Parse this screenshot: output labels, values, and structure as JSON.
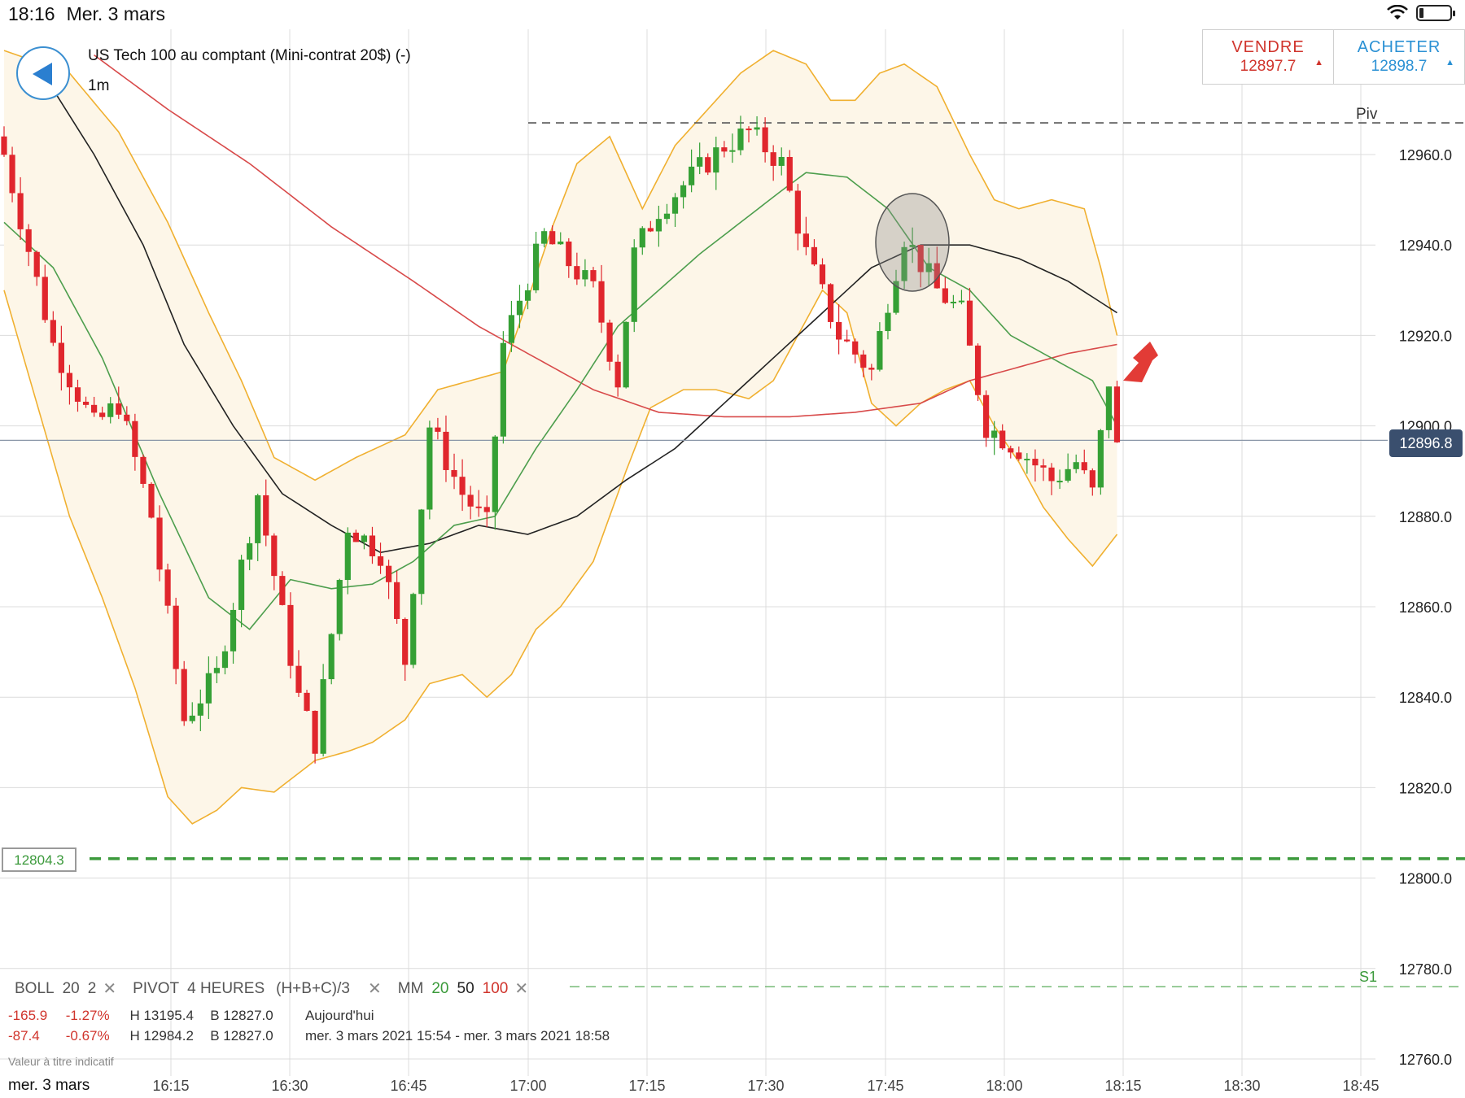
{
  "status": {
    "time": "18:16",
    "date": "Mer. 3 mars"
  },
  "header": {
    "instrument": "US Tech 100 au comptant (Mini-contrat 20$) (-)",
    "timeframe": "1m",
    "sell_label": "VENDRE",
    "sell_price": "12897.7",
    "buy_label": "ACHETER",
    "buy_price": "12898.7"
  },
  "colors": {
    "bull": "#35a035",
    "bear": "#e0262d",
    "boll_band": "#f0b030",
    "ma20": "#4d9e4d",
    "ma50": "#222222",
    "ma100": "#d84a4a",
    "accent": "#2b91d4"
  },
  "indicators": {
    "boll": {
      "name": "BOLL",
      "p1": "20",
      "p2": "2"
    },
    "pivot": {
      "name": "PIVOT",
      "p1": "4 HEURES",
      "p2": "(H+B+C)/3"
    },
    "mm": {
      "name": "MM",
      "p1": "20",
      "p2": "50",
      "p3": "100"
    }
  },
  "stats": [
    {
      "change": "-165.9",
      "pct": "-1.27%",
      "high": "H 13195.4",
      "low": "B 12827.0",
      "period": "Aujourd'hui"
    },
    {
      "change": "-87.4",
      "pct": "-0.67%",
      "high": "H 12984.2",
      "low": "B 12827.0",
      "period": "mer. 3 mars 2021 15:54 - mer. 3 mars 2021 18:58"
    }
  ],
  "footer": {
    "disclaimer": "Valeur à titre indicatif",
    "date": "mer. 3 mars"
  },
  "price_tags": {
    "current": "12896.8",
    "support": "12804.3"
  },
  "chart_data": {
    "type": "candlestick",
    "x_axis": {
      "labels": [
        "16:15",
        "16:30",
        "16:45",
        "17:00",
        "17:15",
        "17:30",
        "17:45",
        "18:00",
        "18:15",
        "18:30",
        "18:45"
      ]
    },
    "y_axis": {
      "min": 12756,
      "max": 12984,
      "ticks": [
        12760,
        12780,
        12800,
        12820,
        12840,
        12860,
        12880,
        12900,
        12920,
        12940,
        12960
      ],
      "tick_labels": [
        "12760.0",
        "12780.0",
        "12800.0",
        "12820.0",
        "12840.0",
        "12860.0",
        "12880.0",
        "12900.0",
        "12920.0",
        "12940.0",
        "12960.0"
      ]
    },
    "grid": true,
    "levels": [
      {
        "name": "Piv",
        "value": 12967
      },
      {
        "name": "S1",
        "value": 12776
      },
      {
        "name": "support",
        "value": 12804.3
      },
      {
        "name": "current",
        "value": 12896.8
      }
    ],
    "anchors": {
      "close": [
        {
          "t": 0,
          "v": 12960
        },
        {
          "t": 6,
          "v": 12918
        },
        {
          "t": 11,
          "v": 12900
        },
        {
          "t": 14,
          "v": 12905
        },
        {
          "t": 18,
          "v": 12880
        },
        {
          "t": 22,
          "v": 12835
        },
        {
          "t": 26,
          "v": 12845
        },
        {
          "t": 31,
          "v": 12885
        },
        {
          "t": 36,
          "v": 12840
        },
        {
          "t": 38,
          "v": 12830
        },
        {
          "t": 42,
          "v": 12878
        },
        {
          "t": 46,
          "v": 12872
        },
        {
          "t": 49,
          "v": 12848
        },
        {
          "t": 52,
          "v": 12900
        },
        {
          "t": 56,
          "v": 12885
        },
        {
          "t": 59,
          "v": 12878
        },
        {
          "t": 61,
          "v": 12918
        },
        {
          "t": 63,
          "v": 12928
        },
        {
          "t": 66,
          "v": 12942
        },
        {
          "t": 72,
          "v": 12930
        },
        {
          "t": 75,
          "v": 12910
        },
        {
          "t": 77,
          "v": 12938
        },
        {
          "t": 80,
          "v": 12948
        },
        {
          "t": 84,
          "v": 12955
        },
        {
          "t": 88,
          "v": 12962
        },
        {
          "t": 91,
          "v": 12965
        },
        {
          "t": 95,
          "v": 12958
        },
        {
          "t": 98,
          "v": 12938
        },
        {
          "t": 102,
          "v": 12920
        },
        {
          "t": 106,
          "v": 12912
        },
        {
          "t": 108,
          "v": 12928
        },
        {
          "t": 110,
          "v": 12942
        },
        {
          "t": 114,
          "v": 12930
        },
        {
          "t": 117,
          "v": 12925
        },
        {
          "t": 120,
          "v": 12900
        },
        {
          "t": 124,
          "v": 12895
        },
        {
          "t": 128,
          "v": 12888
        },
        {
          "t": 131,
          "v": 12892
        },
        {
          "t": 133,
          "v": 12885
        },
        {
          "t": 135,
          "v": 12910
        },
        {
          "t": 136,
          "v": 12895
        }
      ],
      "ma20": [
        {
          "t": 0,
          "v": 12945
        },
        {
          "t": 6,
          "v": 12935
        },
        {
          "t": 12,
          "v": 12915
        },
        {
          "t": 19,
          "v": 12885
        },
        {
          "t": 25,
          "v": 12862
        },
        {
          "t": 30,
          "v": 12855
        },
        {
          "t": 35,
          "v": 12866
        },
        {
          "t": 40,
          "v": 12864
        },
        {
          "t": 45,
          "v": 12865
        },
        {
          "t": 50,
          "v": 12870
        },
        {
          "t": 55,
          "v": 12878
        },
        {
          "t": 60,
          "v": 12880
        },
        {
          "t": 65,
          "v": 12895
        },
        {
          "t": 70,
          "v": 12908
        },
        {
          "t": 75,
          "v": 12922
        },
        {
          "t": 80,
          "v": 12930
        },
        {
          "t": 85,
          "v": 12938
        },
        {
          "t": 90,
          "v": 12945
        },
        {
          "t": 95,
          "v": 12952
        },
        {
          "t": 98,
          "v": 12956
        },
        {
          "t": 103,
          "v": 12955
        },
        {
          "t": 108,
          "v": 12948
        },
        {
          "t": 113,
          "v": 12935
        },
        {
          "t": 118,
          "v": 12930
        },
        {
          "t": 123,
          "v": 12920
        },
        {
          "t": 128,
          "v": 12915
        },
        {
          "t": 133,
          "v": 12910
        },
        {
          "t": 136,
          "v": 12900
        }
      ],
      "ma50": [
        {
          "t": 3,
          "v": 12983
        },
        {
          "t": 11,
          "v": 12960
        },
        {
          "t": 17,
          "v": 12940
        },
        {
          "t": 22,
          "v": 12918
        },
        {
          "t": 28,
          "v": 12900
        },
        {
          "t": 34,
          "v": 12885
        },
        {
          "t": 40,
          "v": 12878
        },
        {
          "t": 46,
          "v": 12872
        },
        {
          "t": 52,
          "v": 12874
        },
        {
          "t": 58,
          "v": 12878
        },
        {
          "t": 64,
          "v": 12876
        },
        {
          "t": 70,
          "v": 12880
        },
        {
          "t": 76,
          "v": 12888
        },
        {
          "t": 82,
          "v": 12895
        },
        {
          "t": 88,
          "v": 12905
        },
        {
          "t": 94,
          "v": 12915
        },
        {
          "t": 100,
          "v": 12925
        },
        {
          "t": 106,
          "v": 12935
        },
        {
          "t": 112,
          "v": 12940
        },
        {
          "t": 118,
          "v": 12940
        },
        {
          "t": 124,
          "v": 12937
        },
        {
          "t": 130,
          "v": 12932
        },
        {
          "t": 136,
          "v": 12925
        }
      ],
      "ma100": [
        {
          "t": 11,
          "v": 12982
        },
        {
          "t": 20,
          "v": 12970
        },
        {
          "t": 30,
          "v": 12958
        },
        {
          "t": 40,
          "v": 12944
        },
        {
          "t": 50,
          "v": 12932
        },
        {
          "t": 58,
          "v": 12922
        },
        {
          "t": 65,
          "v": 12915
        },
        {
          "t": 72,
          "v": 12908
        },
        {
          "t": 80,
          "v": 12903
        },
        {
          "t": 88,
          "v": 12902
        },
        {
          "t": 96,
          "v": 12902
        },
        {
          "t": 104,
          "v": 12903
        },
        {
          "t": 112,
          "v": 12905
        },
        {
          "t": 118,
          "v": 12910
        },
        {
          "t": 124,
          "v": 12913
        },
        {
          "t": 130,
          "v": 12916
        },
        {
          "t": 136,
          "v": 12918
        }
      ],
      "boll_upper": [
        {
          "t": 0,
          "v": 12983
        },
        {
          "t": 8,
          "v": 12978
        },
        {
          "t": 14,
          "v": 12965
        },
        {
          "t": 20,
          "v": 12945
        },
        {
          "t": 25,
          "v": 12925
        },
        {
          "t": 29,
          "v": 12910
        },
        {
          "t": 33,
          "v": 12893
        },
        {
          "t": 38,
          "v": 12888
        },
        {
          "t": 43,
          "v": 12893
        },
        {
          "t": 49,
          "v": 12898
        },
        {
          "t": 53,
          "v": 12908
        },
        {
          "t": 57,
          "v": 12910
        },
        {
          "t": 61,
          "v": 12912
        },
        {
          "t": 64,
          "v": 12928
        },
        {
          "t": 67,
          "v": 12944
        },
        {
          "t": 70,
          "v": 12958
        },
        {
          "t": 74,
          "v": 12964
        },
        {
          "t": 78,
          "v": 12948
        },
        {
          "t": 82,
          "v": 12962
        },
        {
          "t": 86,
          "v": 12970
        },
        {
          "t": 90,
          "v": 12978
        },
        {
          "t": 94,
          "v": 12983
        },
        {
          "t": 98,
          "v": 12980
        },
        {
          "t": 101,
          "v": 12972
        },
        {
          "t": 104,
          "v": 12972
        },
        {
          "t": 107,
          "v": 12978
        },
        {
          "t": 110,
          "v": 12980
        },
        {
          "t": 114,
          "v": 12975
        },
        {
          "t": 118,
          "v": 12960
        },
        {
          "t": 121,
          "v": 12950
        },
        {
          "t": 124,
          "v": 12948
        },
        {
          "t": 128,
          "v": 12950
        },
        {
          "t": 132,
          "v": 12948
        },
        {
          "t": 134,
          "v": 12935
        },
        {
          "t": 136,
          "v": 12920
        }
      ],
      "boll_lower": [
        {
          "t": 0,
          "v": 12930
        },
        {
          "t": 4,
          "v": 12905
        },
        {
          "t": 8,
          "v": 12880
        },
        {
          "t": 12,
          "v": 12862
        },
        {
          "t": 16,
          "v": 12842
        },
        {
          "t": 20,
          "v": 12818
        },
        {
          "t": 23,
          "v": 12812
        },
        {
          "t": 26,
          "v": 12815
        },
        {
          "t": 29,
          "v": 12820
        },
        {
          "t": 33,
          "v": 12819
        },
        {
          "t": 38,
          "v": 12826
        },
        {
          "t": 42,
          "v": 12828
        },
        {
          "t": 45,
          "v": 12830
        },
        {
          "t": 49,
          "v": 12835
        },
        {
          "t": 52,
          "v": 12843
        },
        {
          "t": 56,
          "v": 12845
        },
        {
          "t": 59,
          "v": 12840
        },
        {
          "t": 62,
          "v": 12845
        },
        {
          "t": 65,
          "v": 12855
        },
        {
          "t": 68,
          "v": 12860
        },
        {
          "t": 72,
          "v": 12870
        },
        {
          "t": 76,
          "v": 12890
        },
        {
          "t": 79,
          "v": 12904
        },
        {
          "t": 83,
          "v": 12908
        },
        {
          "t": 87,
          "v": 12908
        },
        {
          "t": 91,
          "v": 12906
        },
        {
          "t": 94,
          "v": 12910
        },
        {
          "t": 97,
          "v": 12920
        },
        {
          "t": 100,
          "v": 12930
        },
        {
          "t": 103,
          "v": 12925
        },
        {
          "t": 106,
          "v": 12905
        },
        {
          "t": 109,
          "v": 12900
        },
        {
          "t": 112,
          "v": 12905
        },
        {
          "t": 115,
          "v": 12908
        },
        {
          "t": 118,
          "v": 12910
        },
        {
          "t": 121,
          "v": 12900
        },
        {
          "t": 124,
          "v": 12892
        },
        {
          "t": 127,
          "v": 12882
        },
        {
          "t": 130,
          "v": 12875
        },
        {
          "t": 133,
          "v": 12869
        },
        {
          "t": 136,
          "v": 12876
        }
      ]
    },
    "candle_count": 137
  }
}
